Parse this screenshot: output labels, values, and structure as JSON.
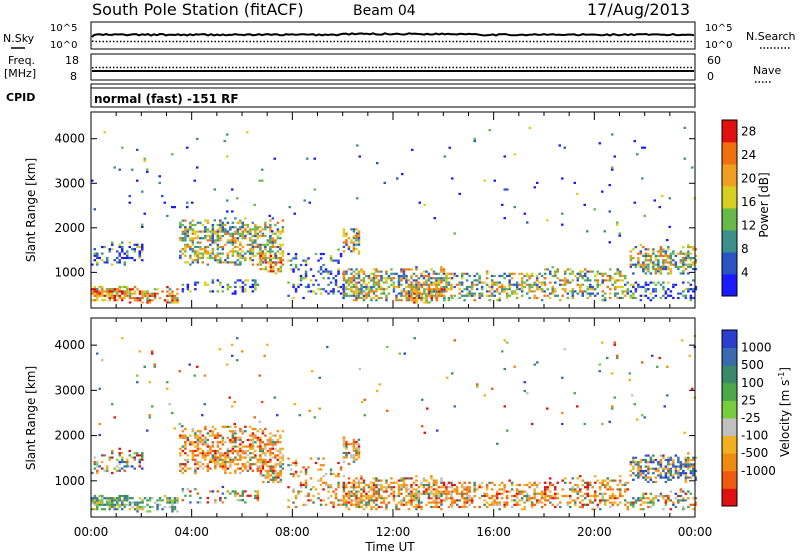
{
  "header": {
    "station": "South Pole Station (fitACF)",
    "beam": "Beam 04",
    "date": "17/Aug/2013"
  },
  "nsky_panel": {
    "left_label": "N.Sky",
    "left_ticks": [
      "10^5",
      "10^0"
    ],
    "right_label": "N.Search",
    "right_ticks": [
      "10^5",
      "10^0"
    ]
  },
  "freq_panel": {
    "left_label_line1": "Freq.",
    "left_label_line2": "[MHz]",
    "left_ticks": [
      18,
      8
    ],
    "right_label": "Nave",
    "right_ticks": [
      60,
      0
    ]
  },
  "cpid_panel": {
    "label": "CPID",
    "text": "normal (fast) -151 RF"
  },
  "chart_data": [
    {
      "type": "heatmap",
      "name": "power",
      "xlabel": "Time UT",
      "ylabel": "Slant Range [km]",
      "xlim_hours": [
        0,
        24
      ],
      "ylim_km": [
        200,
        4600
      ],
      "yticks": [
        1000,
        2000,
        3000,
        4000
      ],
      "colorbar": {
        "label": "Power [dB]",
        "ticks": [
          4,
          8,
          12,
          16,
          20,
          24,
          28
        ],
        "range": [
          0,
          30
        ],
        "colors": [
          "#1a1aff",
          "#2a54c4",
          "#3c8f8a",
          "#68b84a",
          "#d8d020",
          "#f0a020",
          "#f07010",
          "#e01010"
        ]
      },
      "scatter_regions": [
        {
          "t": [
            0.0,
            2.0
          ],
          "r": [
            1100,
            1700
          ],
          "density": 0.35,
          "bias": "low"
        },
        {
          "t": [
            0.0,
            1.4
          ],
          "r": [
            300,
            700
          ],
          "density": 0.75,
          "bias": "high"
        },
        {
          "t": [
            1.5,
            3.4
          ],
          "r": [
            250,
            650
          ],
          "density": 0.6,
          "bias": "high"
        },
        {
          "t": [
            3.5,
            7.6
          ],
          "r": [
            1100,
            2200
          ],
          "density": 0.55,
          "bias": "mid"
        },
        {
          "t": [
            3.6,
            6.6
          ],
          "r": [
            450,
            850
          ],
          "density": 0.35,
          "bias": "low"
        },
        {
          "t": [
            6.7,
            7.5
          ],
          "r": [
            900,
            1400
          ],
          "density": 0.6,
          "bias": "high"
        },
        {
          "t": [
            7.8,
            10.0
          ],
          "r": [
            300,
            1500
          ],
          "density": 0.25,
          "bias": "low"
        },
        {
          "t": [
            10.0,
            10.6
          ],
          "r": [
            1300,
            2000
          ],
          "density": 0.5,
          "bias": "mid"
        },
        {
          "t": [
            10.0,
            14.3
          ],
          "r": [
            300,
            1100
          ],
          "density": 0.6,
          "bias": "mid"
        },
        {
          "t": [
            12.5,
            14.0
          ],
          "r": [
            250,
            650
          ],
          "density": 0.6,
          "bias": "high"
        },
        {
          "t": [
            14.3,
            18.0
          ],
          "r": [
            300,
            1000
          ],
          "density": 0.45,
          "bias": "mid"
        },
        {
          "t": [
            18.0,
            21.3
          ],
          "r": [
            300,
            1100
          ],
          "density": 0.45,
          "bias": "mid"
        },
        {
          "t": [
            21.4,
            24.0
          ],
          "r": [
            900,
            1600
          ],
          "density": 0.55,
          "bias": "mid"
        },
        {
          "t": [
            21.4,
            24.0
          ],
          "r": [
            300,
            800
          ],
          "density": 0.35,
          "bias": "low"
        },
        {
          "t": [
            0.0,
            24.0
          ],
          "r": [
            1600,
            4300
          ],
          "density": 0.012,
          "bias": "low"
        }
      ]
    },
    {
      "type": "heatmap",
      "name": "velocity",
      "xlabel": "Time UT",
      "ylabel": "Slant Range [km]",
      "xlim_hours": [
        0,
        24
      ],
      "ylim_km": [
        200,
        4600
      ],
      "yticks": [
        1000,
        2000,
        3000,
        4000
      ],
      "xticks": [
        "00:00",
        "04:00",
        "08:00",
        "12:00",
        "16:00",
        "20:00",
        "00:00"
      ],
      "colorbar": {
        "label": "Velocity [m s",
        "label_superscript": "-1",
        "label_close": "]",
        "ticks": [
          "1000",
          "500",
          "100",
          "25",
          "-25",
          "-100",
          "-500",
          "-1000"
        ],
        "colors": [
          "#2a3fd0",
          "#3a6ab0",
          "#3a8a6a",
          "#4aa84a",
          "#78cc40",
          "#c0c0c0",
          "#f0b020",
          "#f08a10",
          "#f05a10",
          "#e01010"
        ]
      },
      "scatter_regions": [
        {
          "t": [
            0.0,
            2.0
          ],
          "r": [
            1100,
            1700
          ],
          "density": 0.35,
          "bias": "mixed"
        },
        {
          "t": [
            0.0,
            1.4
          ],
          "r": [
            300,
            700
          ],
          "density": 0.7,
          "bias": "green"
        },
        {
          "t": [
            1.5,
            3.4
          ],
          "r": [
            250,
            650
          ],
          "density": 0.55,
          "bias": "green"
        },
        {
          "t": [
            3.5,
            7.6
          ],
          "r": [
            1100,
            2200
          ],
          "density": 0.55,
          "bias": "orange"
        },
        {
          "t": [
            3.6,
            6.6
          ],
          "r": [
            450,
            850
          ],
          "density": 0.35,
          "bias": "mixed"
        },
        {
          "t": [
            6.7,
            7.5
          ],
          "r": [
            900,
            1400
          ],
          "density": 0.6,
          "bias": "orange"
        },
        {
          "t": [
            7.8,
            10.0
          ],
          "r": [
            300,
            1500
          ],
          "density": 0.25,
          "bias": "orange"
        },
        {
          "t": [
            10.0,
            10.6
          ],
          "r": [
            1300,
            2000
          ],
          "density": 0.5,
          "bias": "orange"
        },
        {
          "t": [
            10.0,
            14.3
          ],
          "r": [
            300,
            1100
          ],
          "density": 0.6,
          "bias": "orange"
        },
        {
          "t": [
            14.3,
            18.0
          ],
          "r": [
            300,
            1000
          ],
          "density": 0.45,
          "bias": "orange"
        },
        {
          "t": [
            18.0,
            21.3
          ],
          "r": [
            300,
            1100
          ],
          "density": 0.45,
          "bias": "orange"
        },
        {
          "t": [
            21.4,
            24.0
          ],
          "r": [
            900,
            1600
          ],
          "density": 0.55,
          "bias": "blue"
        },
        {
          "t": [
            21.4,
            24.0
          ],
          "r": [
            300,
            800
          ],
          "density": 0.35,
          "bias": "mixed"
        },
        {
          "t": [
            0.0,
            24.0
          ],
          "r": [
            1600,
            4300
          ],
          "density": 0.012,
          "bias": "mixed"
        }
      ]
    }
  ]
}
